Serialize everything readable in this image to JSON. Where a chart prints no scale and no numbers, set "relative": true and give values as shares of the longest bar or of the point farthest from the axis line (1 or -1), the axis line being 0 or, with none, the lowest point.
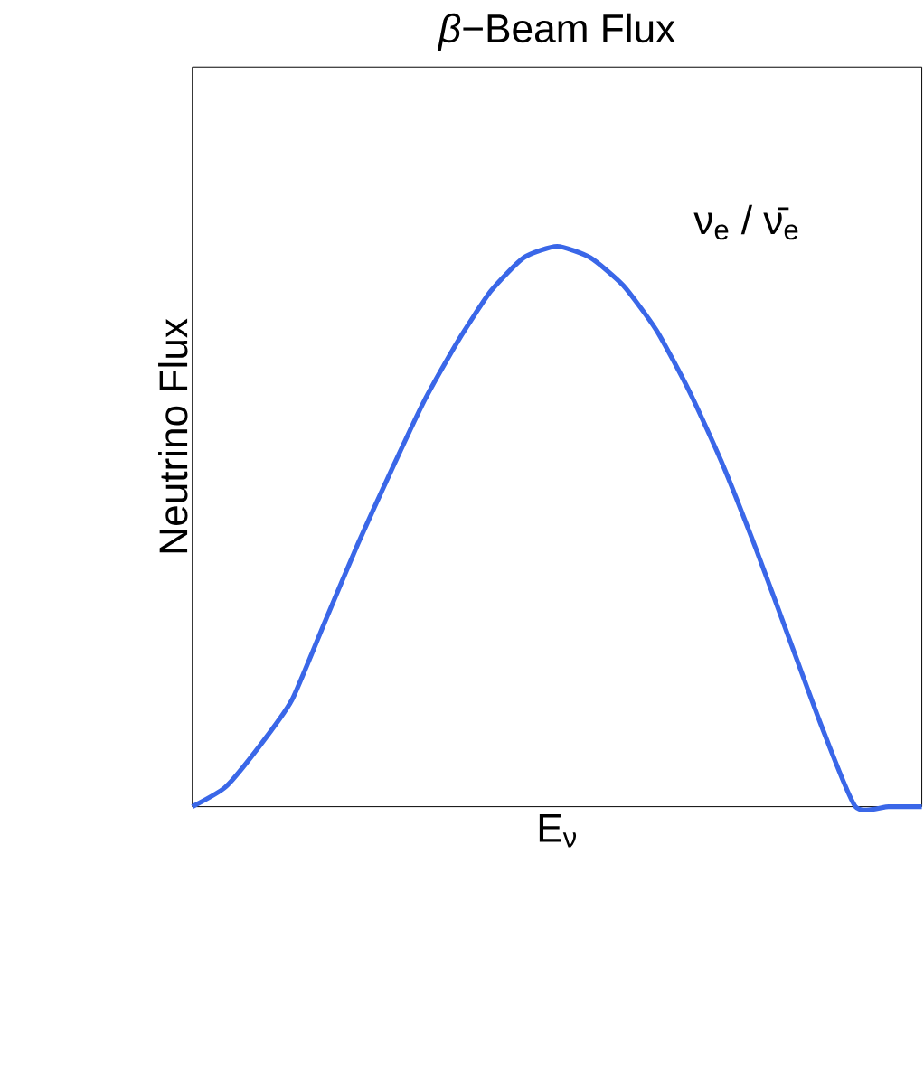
{
  "chart_data": {
    "type": "line",
    "relative": true,
    "title": "*β*−Beam Flux",
    "xlabel": "E$_{ν}$",
    "ylabel": "Neutrino Flux",
    "annotations": [
      "ν$_{e}$ / ν̄$_{e}$"
    ],
    "categories": [
      null,
      null,
      null,
      null,
      null,
      null,
      null,
      null,
      null,
      null,
      null,
      null,
      null,
      null,
      null,
      null,
      null,
      null,
      null,
      null,
      null,
      null,
      null
    ],
    "series": [
      {
        "color": "#3a67e8",
        "values": [
          0,
          0.035,
          0.106,
          0.19,
          0.33,
          0.47,
          0.6,
          0.725,
          0.83,
          0.92,
          0.98,
          1.0,
          0.98,
          0.93,
          0.85,
          0.74,
          0.61,
          0.46,
          0.3,
          0.14,
          0,
          0,
          0
        ]
      }
    ]
  }
}
